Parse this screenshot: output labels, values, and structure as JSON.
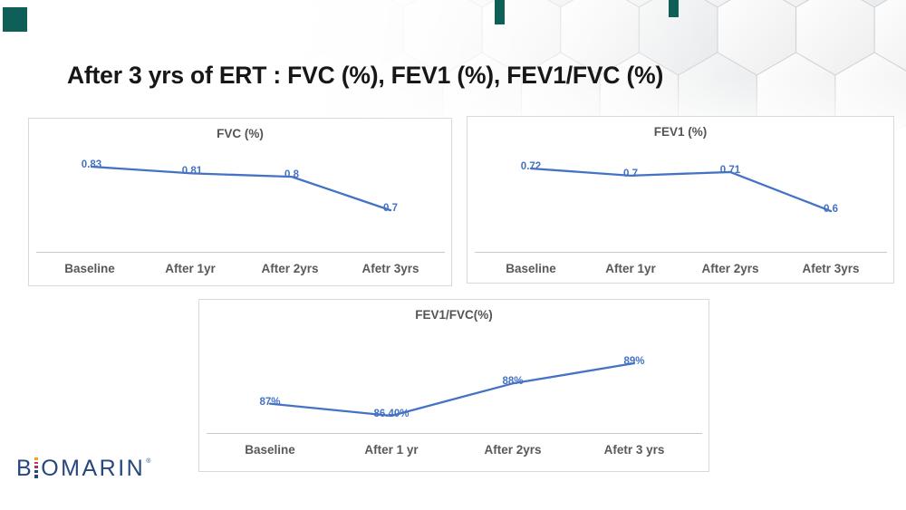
{
  "slide": {
    "title": "After 3 yrs of ERT : FVC (%), FEV1 (%), FEV1/FVC (%)"
  },
  "branding": {
    "logo_prefix": "B",
    "logo_suffix": "OMARIN",
    "registered_mark": "®"
  },
  "colors": {
    "line_blue": "#4472C4",
    "data_label_blue": "#4472C4",
    "axis_gray": "#C8C8C8",
    "category_text_gray": "#595959",
    "chart_border_gray": "#D9D9D9",
    "title_text": "#171717",
    "teal_accent": "#0E5F58",
    "hex_edge": "#CED2D6",
    "logo_navy": "#27477E",
    "logo_dot_colors": [
      "#F2A21B",
      "#D82E6B",
      "#AF2E66",
      "#27477E",
      "#27477E"
    ]
  },
  "chart_data": [
    {
      "type": "line",
      "title": "FVC (%)",
      "categories": [
        "Baseline",
        "After 1yr",
        "After 2yrs",
        "Afetr 3yrs"
      ],
      "values": [
        0.83,
        0.81,
        0.8,
        0.7
      ],
      "data_labels": [
        "0.83",
        "0.81",
        "0.8",
        "0.7"
      ],
      "xlabel": "",
      "ylabel": "",
      "ylim": [
        0.65,
        0.88
      ],
      "grid": false,
      "legend": "none",
      "line_color": "#4472C4"
    },
    {
      "type": "line",
      "title": "FEV1 (%)",
      "categories": [
        "Baseline",
        "After 1yr",
        "After 2yrs",
        "Afetr 3yrs"
      ],
      "values": [
        0.72,
        0.7,
        0.71,
        0.6
      ],
      "data_labels": [
        "0.72",
        "0.7",
        "0.71",
        "0.6"
      ],
      "xlabel": "",
      "ylabel": "",
      "ylim": [
        0.55,
        0.78
      ],
      "grid": false,
      "legend": "none",
      "line_color": "#4472C4"
    },
    {
      "type": "line",
      "title": "FEV1/FVC(%)",
      "categories": [
        "Baseline",
        "After 1 yr",
        "After 2yrs",
        "Afetr 3 yrs"
      ],
      "values": [
        87,
        86.4,
        88,
        89
      ],
      "data_labels": [
        "87%",
        "86.40%",
        "88%",
        "89%"
      ],
      "xlabel": "",
      "ylabel": "",
      "ylim": [
        85,
        90
      ],
      "grid": false,
      "legend": "none",
      "line_color": "#4472C4"
    }
  ]
}
